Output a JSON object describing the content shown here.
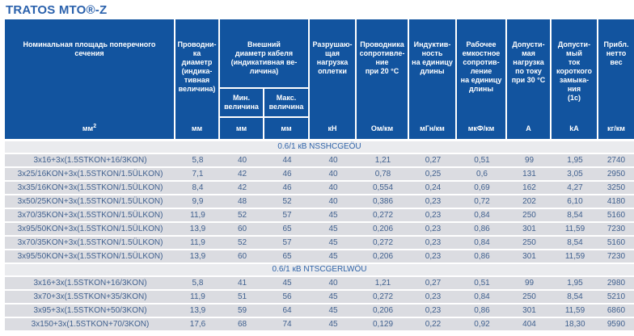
{
  "title": {
    "main": "TRATOS MTO®-",
    "suffix": "Z"
  },
  "colors": {
    "header_blue": "#12549f",
    "title_blue": "#2a61ac",
    "body_text": "#41618f",
    "row_bg": "#dbdce1",
    "section_bg": "#eaebee",
    "section_text": "#2f63a8"
  },
  "table": {
    "group": {
      "label": "Внешний\nдиаметр кабеля\n(индикативная ве-\nличина)"
    },
    "columns": [
      {
        "label": "Номинальная площадь поперечного\nсечения",
        "unit": "мм²"
      },
      {
        "label": "Проводни-\nка\nдиаметр\n(индика-\nтивная\nвеличина)",
        "unit": "мм"
      },
      {
        "label": "Мин.\nвеличина",
        "unit": "мм"
      },
      {
        "label": "Макс.\nвеличина",
        "unit": "мм"
      },
      {
        "label": "Разрушаю-\nщая\nнагрузка\nоплетки",
        "unit": "кН"
      },
      {
        "label": "Проводника\nсопротивле-\nние\nпри 20 °C",
        "unit": "Ом/км"
      },
      {
        "label": "Индуктив-\nность\nна единицу\nдлины",
        "unit": "мГн/км"
      },
      {
        "label": "Рабочее\nемкостное\nсопротив-\nление\nна единицу\nдлины",
        "unit": "мкФ/км"
      },
      {
        "label": "Допусти-\nмая\nнагрузка\nпо току\nпри 30 °C",
        "unit": "A"
      },
      {
        "label": "Допусти-\nмый\nток\nкороткого\nзамыка-\nния\n(1с)",
        "unit": "kA"
      },
      {
        "label": "Прибл.\nнетто\nвес",
        "unit": "кг/км"
      }
    ],
    "sections": [
      {
        "label": "0.6/1 кВ NSSHCGEÖU",
        "rows": [
          [
            "3x16+3x(1.5STKON+16/3KON)",
            "5,8",
            "40",
            "44",
            "40",
            "1,21",
            "0,27",
            "0,51",
            "99",
            "1,95",
            "2740"
          ],
          [
            "3x25/16KON+3x(1.5STKON/1.5ÜLKON)",
            "7,1",
            "42",
            "46",
            "40",
            "0,78",
            "0,25",
            "0,6",
            "131",
            "3,05",
            "2950"
          ],
          [
            "3x35/16KON+3x(1.5STKON/1.5ÜLKON)",
            "8,4",
            "42",
            "46",
            "40",
            "0,554",
            "0,24",
            "0,69",
            "162",
            "4,27",
            "3250"
          ],
          [
            "3x50/25KON+3x(1.5STKON/1.5ÜLKON)",
            "9,9",
            "48",
            "52",
            "40",
            "0,386",
            "0,23",
            "0,72",
            "202",
            "6,10",
            "4180"
          ],
          [
            "3x70/35KON+3x(1.5STKON/1.5ÜLKON)",
            "11,9",
            "52",
            "57",
            "45",
            "0,272",
            "0,23",
            "0,84",
            "250",
            "8,54",
            "5160"
          ],
          [
            "3x95/50KON+3x(1.5STKON/1.5ÜLKON)",
            "13,9",
            "60",
            "65",
            "45",
            "0,206",
            "0,23",
            "0,86",
            "301",
            "11,59",
            "7230"
          ],
          [
            "3x70/35KON+3x(1.5STKON/1.5ÜLKON)",
            "11,9",
            "52",
            "57",
            "45",
            "0,272",
            "0,23",
            "0,84",
            "250",
            "8,54",
            "5160"
          ],
          [
            "3x95/50KON+3x(1.5STKON/1.5ÜLKON)",
            "13,9",
            "60",
            "65",
            "45",
            "0,206",
            "0,23",
            "0,86",
            "301",
            "11,59",
            "7230"
          ]
        ]
      },
      {
        "label": "0.6/1 кВ NTSCGERLWÖU",
        "rows": [
          [
            "3x16+3x(1.5STKON+16/3KON)",
            "5,8",
            "41",
            "45",
            "40",
            "1,21",
            "0,27",
            "0,51",
            "99",
            "1,95",
            "2980"
          ],
          [
            "3x70+3x(1.5STKON+35/3KON)",
            "11,9",
            "51",
            "56",
            "45",
            "0,272",
            "0,23",
            "0,84",
            "250",
            "8,54",
            "5210"
          ],
          [
            "3x95+3x(1.5STKON+50/3KON)",
            "13,9",
            "59",
            "64",
            "45",
            "0,206",
            "0,23",
            "0,86",
            "301",
            "11,59",
            "6860"
          ],
          [
            "3x150+3x(1.5STKON+70/3KON)",
            "17,6",
            "68",
            "74",
            "45",
            "0,129",
            "0,22",
            "0,92",
            "404",
            "18,30",
            "9590"
          ]
        ]
      }
    ]
  }
}
